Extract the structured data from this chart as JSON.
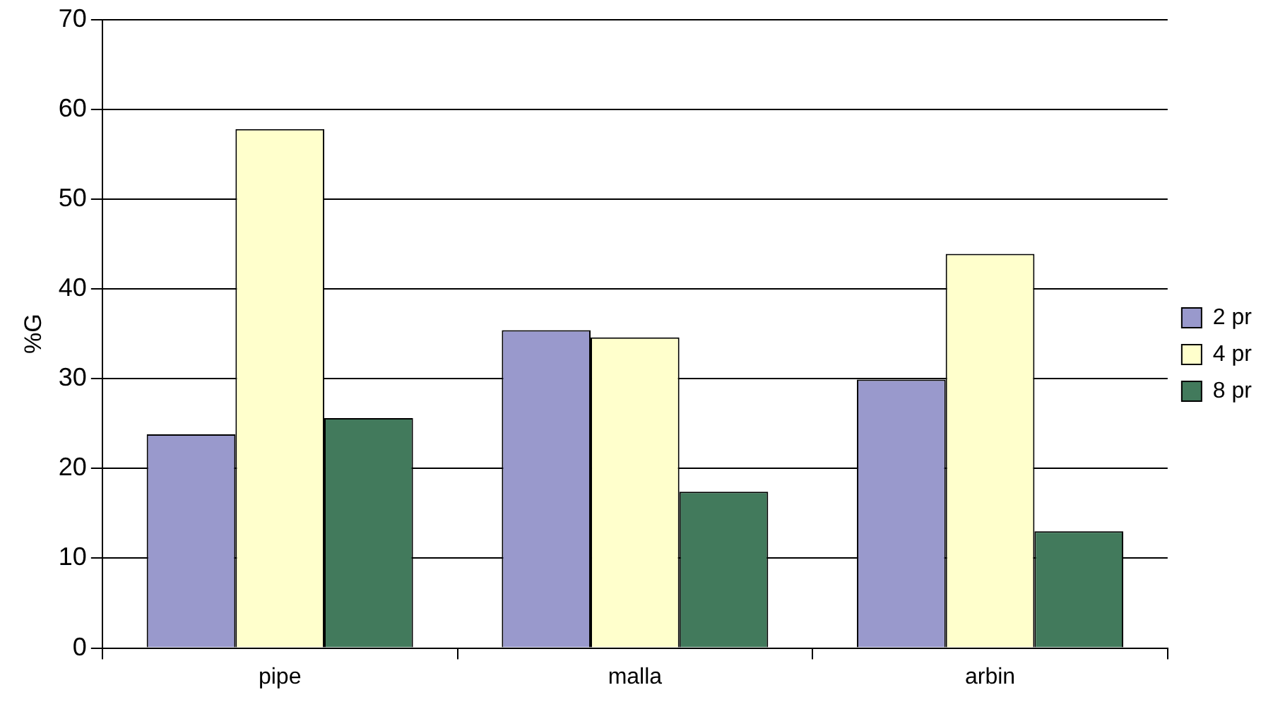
{
  "chart_data": {
    "type": "bar",
    "ylabel": "%G",
    "categories": [
      "pipe",
      "malla",
      "arbin"
    ],
    "series": [
      {
        "name": "2 pr",
        "color": "#9999cc",
        "values": [
          23.8,
          35.4,
          29.9
        ]
      },
      {
        "name": "4 pr",
        "color": "#ffffcc",
        "values": [
          57.8,
          34.6,
          43.9
        ]
      },
      {
        "name": "8 pr",
        "color": "#427a5c",
        "values": [
          25.6,
          17.4,
          13.0
        ]
      }
    ],
    "ylim": [
      0,
      70
    ],
    "yticks": [
      0,
      10,
      20,
      30,
      40,
      50,
      60,
      70
    ],
    "grid": "y",
    "legend": "right"
  }
}
